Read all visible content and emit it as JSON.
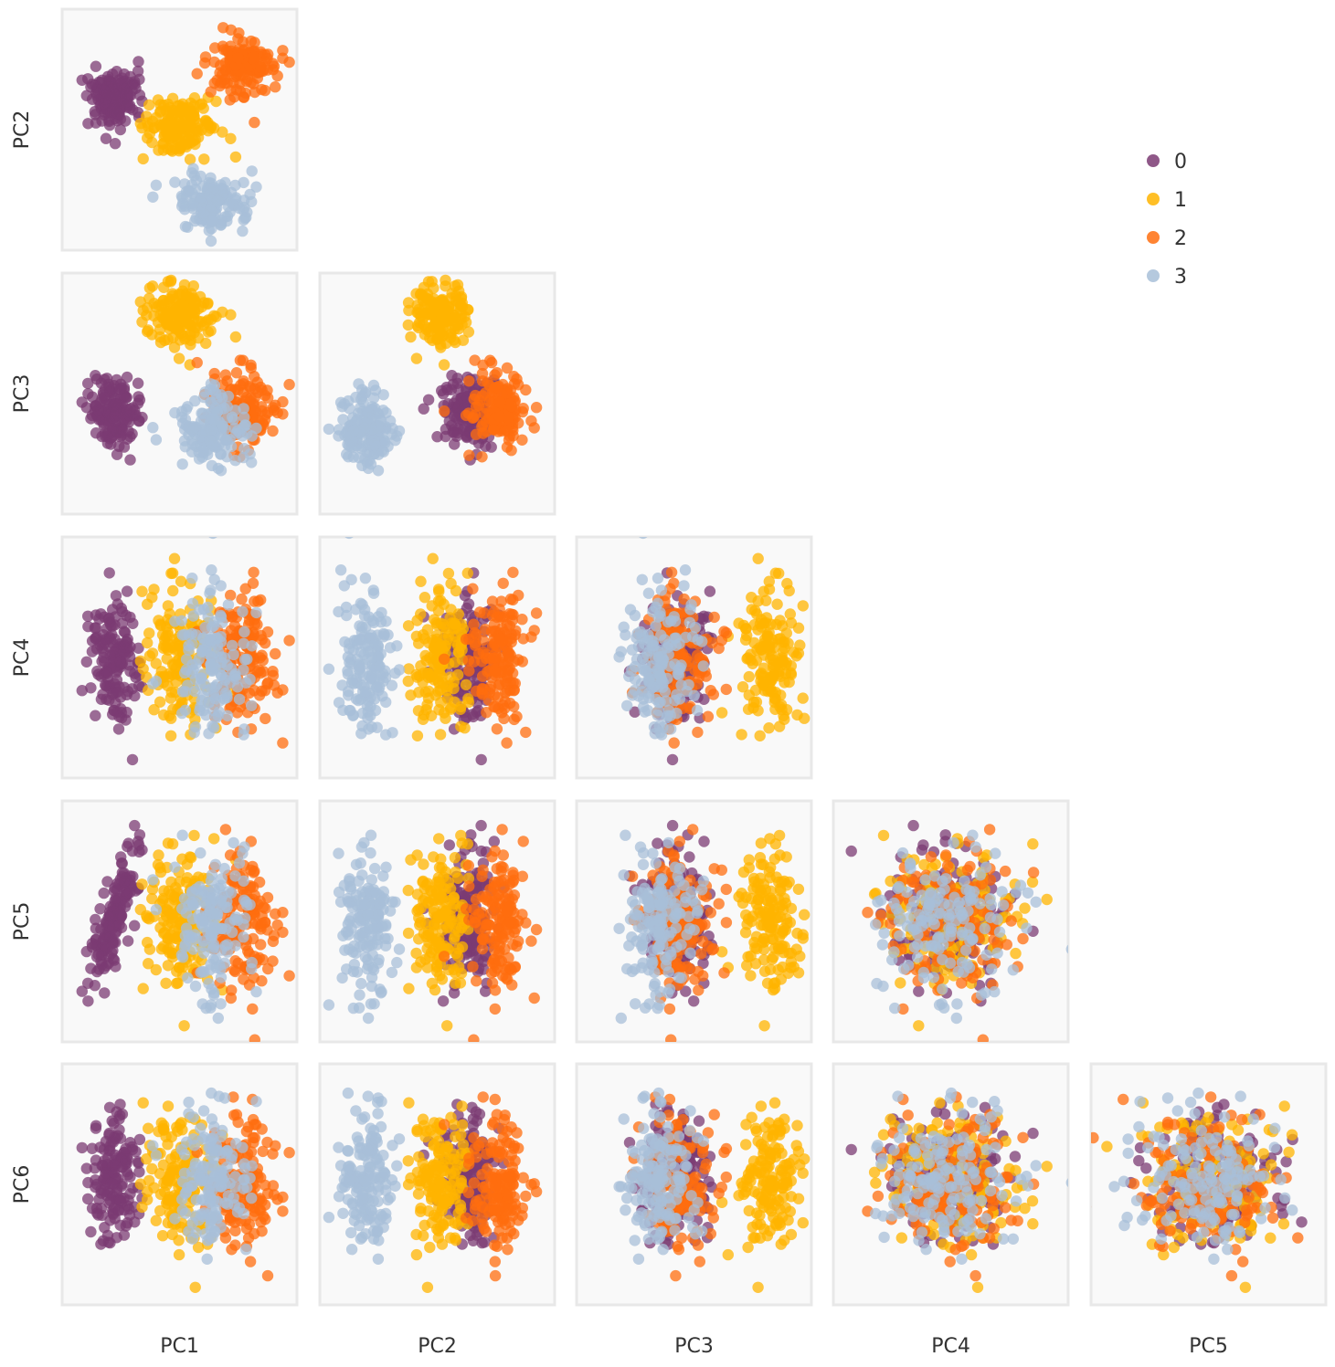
{
  "chart_data": {
    "type": "scatter",
    "layout": "pairplot-lower-triangle",
    "title": "",
    "variables": [
      "PC1",
      "PC2",
      "PC3",
      "PC4",
      "PC5",
      "PC6"
    ],
    "column_labels": [
      "PC1",
      "PC2",
      "PC3",
      "PC4",
      "PC5"
    ],
    "row_labels": [
      "PC2",
      "PC3",
      "PC4",
      "PC5",
      "PC6"
    ],
    "tick_labels": "none",
    "grid": false,
    "legend": {
      "placement": "top-right",
      "entries": [
        "0",
        "1",
        "2",
        "3"
      ]
    },
    "axis_range": [
      -3.2,
      3.2
    ],
    "points_per_cluster": 150,
    "series": [
      {
        "name": "0",
        "color": "#7b3b73",
        "centroid": {
          "PC1": -1.9,
          "PC2": 0.9,
          "PC3": -0.5,
          "PC4": 0,
          "PC5": 0,
          "PC6": 0
        },
        "spread": {
          "PC1": 0.35,
          "PC2": 0.4,
          "PC3": 0.45,
          "PC4": 0.95,
          "PC5": 0.95,
          "PC6": 0.95
        },
        "correlation": {
          "pair": [
            "PC1",
            "PC5"
          ],
          "r": 0.75
        }
      },
      {
        "name": "1",
        "color": "#ffb400",
        "centroid": {
          "PC1": 0,
          "PC2": 0.1,
          "PC3": 2.2,
          "PC4": 0,
          "PC5": 0,
          "PC6": 0
        },
        "spread": {
          "PC1": 0.5,
          "PC2": 0.4,
          "PC3": 0.45,
          "PC4": 0.95,
          "PC5": 0.95,
          "PC6": 0.95
        }
      },
      {
        "name": "2",
        "color": "#ff6e0f",
        "centroid": {
          "PC1": 1.8,
          "PC2": 1.8,
          "PC3": -0.5,
          "PC4": 0,
          "PC5": 0,
          "PC6": 0
        },
        "spread": {
          "PC1": 0.5,
          "PC2": 0.4,
          "PC3": 0.5,
          "PC4": 0.95,
          "PC5": 0.95,
          "PC6": 0.95
        }
      },
      {
        "name": "3",
        "color": "#a8bfd8",
        "centroid": {
          "PC1": 0.9,
          "PC2": -2.0,
          "PC3": -1.0,
          "PC4": 0,
          "PC5": 0,
          "PC6": 0
        },
        "spread": {
          "PC1": 0.5,
          "PC2": 0.4,
          "PC3": 0.5,
          "PC4": 0.95,
          "PC5": 0.95,
          "PC6": 0.95
        }
      }
    ]
  }
}
